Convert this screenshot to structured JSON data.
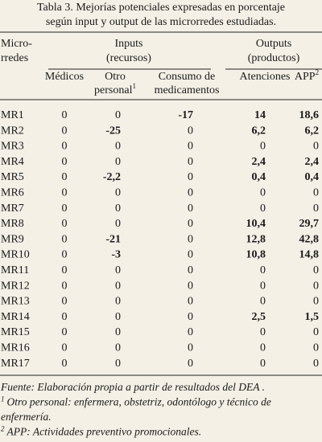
{
  "title": [
    "Tabla 3. Mejorías potenciales expresadas en porcentaje",
    "según input y output de las microrredes estudiadas."
  ],
  "table": {
    "corner": [
      "Micro-",
      "rredes"
    ],
    "groups": [
      {
        "label": [
          "Inputs",
          "(recursos)"
        ]
      },
      {
        "label": [
          "Outputs",
          "(productos)"
        ]
      }
    ],
    "columns": [
      {
        "lines": [
          "Médicos"
        ]
      },
      {
        "lines": [
          "Otro",
          "personal"
        ],
        "sup": "1"
      },
      {
        "lines": [
          "Consumo de",
          "medicamentos"
        ]
      },
      {
        "lines": [
          "Atenciones"
        ]
      },
      {
        "lines": [
          "APP"
        ],
        "sup": "2"
      }
    ],
    "rows": [
      {
        "label": "MR1",
        "cells": [
          "0",
          "0",
          "-17",
          "14",
          "18,6"
        ]
      },
      {
        "label": "MR2",
        "cells": [
          "0",
          "-25",
          "0",
          "6,2",
          "6,2"
        ]
      },
      {
        "label": "MR3",
        "cells": [
          "0",
          "0",
          "0",
          "0",
          "0"
        ]
      },
      {
        "label": "MR4",
        "cells": [
          "0",
          "0",
          "0",
          "2,4",
          "2,4"
        ]
      },
      {
        "label": "MR5",
        "cells": [
          "0",
          "-2,2",
          "0",
          "0,4",
          "0,4"
        ]
      },
      {
        "label": "MR6",
        "cells": [
          "0",
          "0",
          "0",
          "0",
          "0"
        ]
      },
      {
        "label": "MR7",
        "cells": [
          "0",
          "0",
          "0",
          "0",
          "0"
        ]
      },
      {
        "label": "MR8",
        "cells": [
          "0",
          "0",
          "0",
          "10,4",
          "29,7"
        ]
      },
      {
        "label": "MR9",
        "cells": [
          "0",
          "-21",
          "0",
          "12,8",
          "42,8"
        ]
      },
      {
        "label": "MR10",
        "cells": [
          "0",
          "-3",
          "0",
          "10,8",
          "14,8"
        ]
      },
      {
        "label": "MR11",
        "cells": [
          "0",
          "0",
          "0",
          "0",
          "0"
        ]
      },
      {
        "label": "MR12",
        "cells": [
          "0",
          "0",
          "0",
          "0",
          "0"
        ]
      },
      {
        "label": "MR13",
        "cells": [
          "0",
          "0",
          "0",
          "0",
          "0"
        ]
      },
      {
        "label": "MR14",
        "cells": [
          "0",
          "0",
          "0",
          "2,5",
          "1,5"
        ]
      },
      {
        "label": "MR15",
        "cells": [
          "0",
          "0",
          "0",
          "0",
          "0"
        ]
      },
      {
        "label": "MR16",
        "cells": [
          "0",
          "0",
          "0",
          "0",
          "0"
        ]
      },
      {
        "label": "MR17",
        "cells": [
          "0",
          "0",
          "0",
          "0",
          "0"
        ]
      }
    ]
  },
  "footnotes": [
    {
      "lines": [
        "Fuente: Elaboración propia a partir de resultados del DEA ."
      ]
    },
    {
      "marker": "1",
      "lines": [
        "Otro personal: enfermera, obstetriz, odontólogo y técnico de",
        "enfermería."
      ]
    },
    {
      "marker": "2",
      "lines": [
        "APP: Actividades preventivo promocionales."
      ]
    }
  ]
}
